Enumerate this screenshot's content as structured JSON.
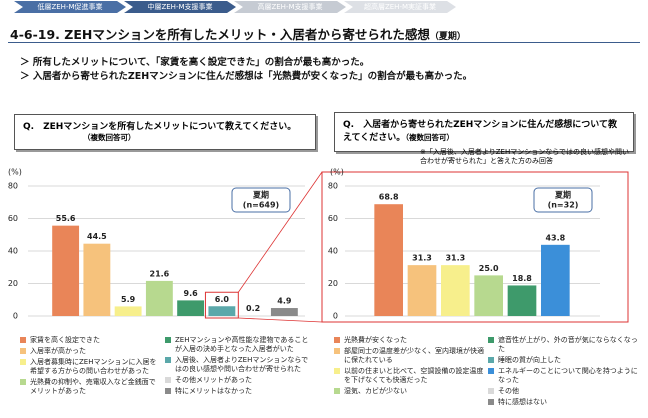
{
  "header": {
    "tabs": [
      "低層ZEH-M促進事業",
      "中層ZEH-M支援事業",
      "高層ZEH-M支援事業",
      "超高層ZEH-M実証事業"
    ],
    "title": "4-6-19. ZEHマンションを所有したメリット・入居者から寄せられた感想",
    "title_note": "（夏期）",
    "bullets": [
      "所有したメリットについて、「家賃を高く設定できた」の割合が最も高かった。",
      "入居者から寄せられたZEHマンションに住んだ感想は「光熱費が安くなった」の割合が最も高かった。"
    ]
  },
  "chart_data": [
    {
      "type": "bar",
      "question": "Q.　ZEHマンションを所有したメリットについて教えてください。",
      "question_note": "（複数回答可）",
      "ylabel": "(%)",
      "box_title": "夏期",
      "box_n": "(n=649)",
      "ylim": [
        0,
        80
      ],
      "yticks": [
        0,
        20,
        40,
        60,
        80
      ],
      "grid": true,
      "values": [
        55.6,
        44.5,
        5.9,
        21.6,
        9.6,
        6.0,
        0.2,
        4.9
      ],
      "value_labels": [
        "55.6",
        "44.5",
        "5.9",
        "21.6",
        "9.6",
        "6.0",
        "0.2",
        "4.9"
      ],
      "colors": [
        "#e98558",
        "#f6c27c",
        "#f7ef8c",
        "#b7d98f",
        "#3e9a6b",
        "#5ba8aa",
        "#d9d9d9",
        "#8a8a8a"
      ],
      "legend": [
        "家賃を高く設定できた",
        "入居率が高かった",
        "入居者募集時にZEHマンションに入居を希望する方からの問い合わせがあった",
        "光熱費の抑制や、売電収入など金銭面でメリットがあった",
        "ZEHマンションや高性能な建物であることが入居の決め手となった入居者がいた",
        "入居後、入居者よりZEHマンションならではの良い感想や問い合わせが寄せられた",
        "その他メリットがあった",
        "特にメリットはなかった"
      ],
      "legend_colors": [
        "#e98558",
        "#f6c27c",
        "#f7ef8c",
        "#b7d98f",
        "#3e9a6b",
        "#5ba8aa",
        "#d9d9d9",
        "#8a8a8a"
      ]
    },
    {
      "type": "bar",
      "question": "Q.　入居者から寄せられたZEHマンションに住んだ感想について教えてください。",
      "question_note": "（複数回答可）",
      "note": "※「入居後、入居者よりZEHマンションならではの良い感想や問い合わせが寄せられた」と答えた方のみ回答",
      "ylabel": "(%)",
      "box_title": "夏期",
      "box_n": "(n=32)",
      "ylim": [
        0,
        80
      ],
      "yticks": [
        0,
        20,
        40,
        60,
        80
      ],
      "grid": true,
      "values": [
        68.8,
        31.3,
        31.3,
        25.0,
        18.8,
        43.8
      ],
      "value_labels": [
        "68.8",
        "31.3",
        "31.3",
        "25.0",
        "18.8",
        "43.8"
      ],
      "colors": [
        "#e98558",
        "#f6c27c",
        "#f7ef8c",
        "#b7d98f",
        "#3e9a6b",
        "#3b8fd9"
      ],
      "legend": [
        "光熱費が安くなった",
        "部屋同士の温度差が少なく、室内環境が快適に保たれている",
        "以前の住まいと比べて、空調設備の設定温度を下げなくても快適だった",
        "湿気、カビが少ない",
        "遮音性が上がり、外の音が気にならなくなった",
        "睡眠の質が向上した",
        "エネルギーのことについて関心を持つようになった",
        "その他",
        "特に感想はない"
      ],
      "legend_colors": [
        "#e98558",
        "#f6c27c",
        "#f7ef8c",
        "#b7d98f",
        "#3e9a6b",
        "#5ba8aa",
        "#3b8fd9",
        "#d9d9d9",
        "#8a8a8a"
      ]
    }
  ]
}
